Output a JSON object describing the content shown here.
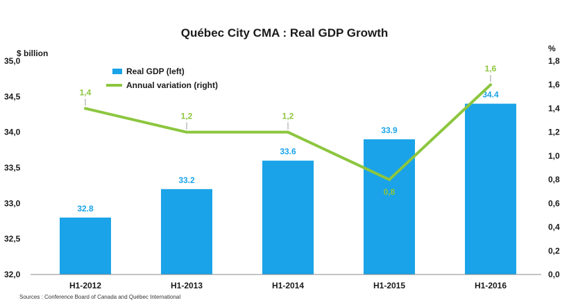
{
  "chart_data": {
    "type": "bar",
    "title": "Québec City CMA : Real GDP Growth",
    "categories": [
      "H1-2012",
      "H1-2013",
      "H1-2014",
      "H1-2015",
      "H1-2016"
    ],
    "series": [
      {
        "name": "Real GDP (left)",
        "type": "bar",
        "axis": "left",
        "values": [
          32.8,
          33.2,
          33.6,
          33.9,
          34.4
        ],
        "labels": [
          "32.8",
          "33.2",
          "33.6",
          "33.9",
          "34.4"
        ]
      },
      {
        "name": "Annual variation (right)",
        "type": "line",
        "axis": "right",
        "values": [
          1.4,
          1.2,
          1.2,
          0.8,
          1.6
        ],
        "labels": [
          "1,4",
          "1,2",
          "1,2",
          "0,8",
          "1,6"
        ]
      }
    ],
    "y_left": {
      "label": "$ billion",
      "min": 32.0,
      "max": 35.0,
      "ticks": [
        "32,0",
        "32,5",
        "33,0",
        "33,5",
        "34,0",
        "34,5",
        "35,0"
      ]
    },
    "y_right": {
      "label": "%",
      "min": 0.0,
      "max": 1.8,
      "ticks": [
        "0,0",
        "0,2",
        "0,4",
        "0,6",
        "0,8",
        "1,0",
        "1,2",
        "1,4",
        "1,6",
        "1,8"
      ]
    },
    "legend_position": "top-left",
    "grid": false,
    "colors": {
      "bar": "#1aa3e8",
      "line": "#8cc63f"
    },
    "source": "Sources : Conference Board of Canada and Québec International"
  }
}
